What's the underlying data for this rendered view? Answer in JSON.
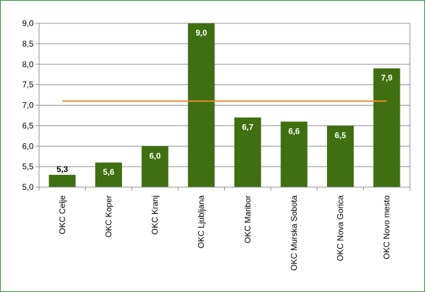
{
  "chart_data": {
    "type": "bar",
    "title": "",
    "xlabel": "",
    "ylabel": "",
    "categories": [
      "OKC Celje",
      "OKC Koper",
      "OKC Kranj",
      "OKC Ljubljana",
      "OKC Maribor",
      "OKC Murska Sobota",
      "OKC Nova Gorica",
      "OKC Novo mesto"
    ],
    "values": [
      5.3,
      5.6,
      6.0,
      9.0,
      6.7,
      6.6,
      6.5,
      7.9
    ],
    "data_labels": [
      "5,3",
      "5,6",
      "6,0",
      "9,0",
      "6,7",
      "6,6",
      "6,5",
      "7,9"
    ],
    "reference_line": 7.1,
    "ylim": [
      5.0,
      9.0
    ],
    "yticks": [
      5.0,
      5.5,
      6.0,
      6.5,
      7.0,
      7.5,
      8.0,
      8.5,
      9.0
    ],
    "ytick_labels": [
      "5,0",
      "5,5",
      "6,0",
      "6,5",
      "7,0",
      "7,5",
      "8,0",
      "8,5",
      "9,0"
    ],
    "grid": true,
    "legend": "none",
    "colors": {
      "bar": "#3f6f10",
      "reference_line": "#e98a33",
      "grid": "#8c8c8c",
      "frame": "#2e8b2e"
    }
  }
}
